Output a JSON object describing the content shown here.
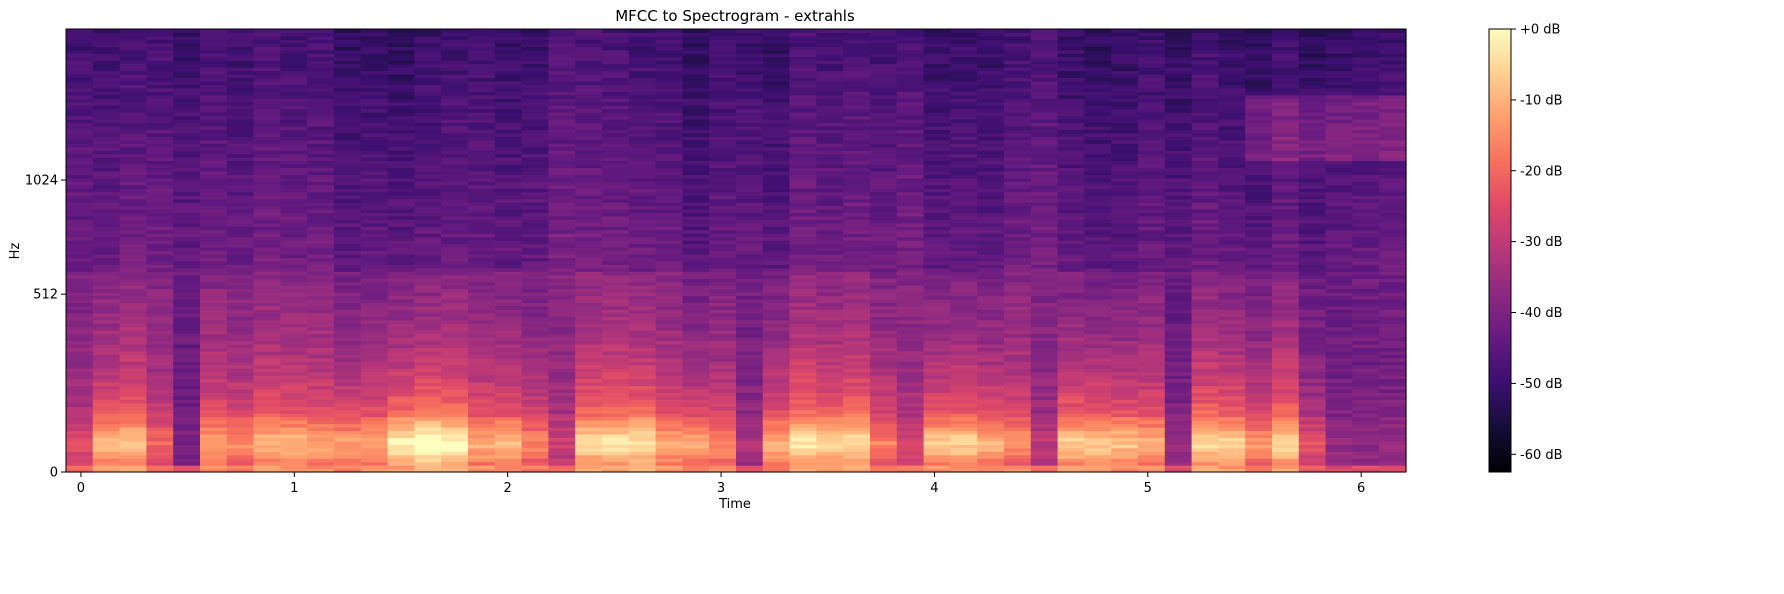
{
  "chart_data": {
    "type": "heatmap",
    "title": "MFCC to Spectrogram - extrahls",
    "xlabel": "Time",
    "ylabel": "Hz",
    "x_range": [
      -0.07,
      6.21
    ],
    "x_ticks": [
      0,
      1,
      2,
      3,
      4,
      5,
      6
    ],
    "x_tick_labels": [
      "0",
      "1",
      "2",
      "3",
      "4",
      "5",
      "6"
    ],
    "y_scale": "mel",
    "y_range": [
      0,
      2048
    ],
    "y_ticks": [
      0,
      512,
      1024
    ],
    "y_tick_labels": [
      "0",
      "512",
      "1024"
    ],
    "colormap": "magma",
    "colorbar": {
      "range": [
        -62.5,
        0
      ],
      "ticks": [
        0,
        -10,
        -20,
        -30,
        -40,
        -50,
        -60
      ],
      "tick_labels": [
        "+0 dB",
        "-10 dB",
        "-20 dB",
        "-30 dB",
        "-40 dB",
        "-50 dB",
        "-60 dB"
      ]
    },
    "time_frames": 50,
    "frame_energy": [
      0.35,
      0.75,
      0.75,
      0.45,
      0.05,
      0.62,
      0.62,
      0.68,
      0.72,
      0.65,
      0.7,
      0.72,
      0.95,
      1.0,
      0.92,
      0.7,
      0.78,
      0.6,
      0.25,
      0.78,
      0.82,
      0.85,
      0.7,
      0.72,
      0.6,
      0.2,
      0.75,
      0.82,
      0.78,
      0.8,
      0.55,
      0.3,
      0.8,
      0.82,
      0.75,
      0.6,
      0.2,
      0.82,
      0.85,
      0.8,
      0.72,
      0.2,
      0.8,
      0.85,
      0.7,
      0.8,
      0.45,
      0.15,
      0.1,
      0.1
    ]
  }
}
